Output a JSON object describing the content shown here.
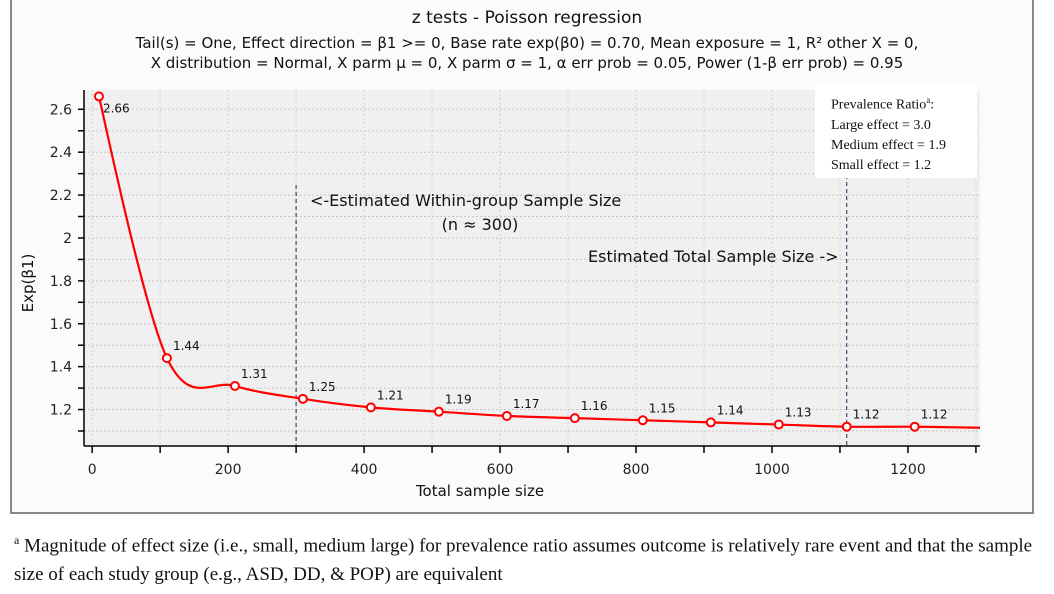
{
  "chart_data": {
    "type": "line",
    "title": "z tests - Poisson regression",
    "subtitle": [
      "Tail(s) = One, Effect direction = β1 >= 0, Base rate exp(β0) = 0.70, Mean exposure = 1, R² other X = 0,",
      "X distribution = Normal, X parm μ = 0, X parm σ = 1, α err prob = 0.05, Power (1-β err prob) = 0.95"
    ],
    "xlabel": "Total sample size",
    "ylabel": "Exp(β1)",
    "xlim": [
      -12,
      1306
    ],
    "ylim": [
      1.03,
      2.69
    ],
    "xticks": [
      0,
      200,
      400,
      600,
      800,
      1000,
      1200
    ],
    "yticks": [
      1.2,
      1.4,
      1.6,
      1.8,
      2,
      2.2,
      2.4,
      2.6
    ],
    "grid": true,
    "color": "#ff0000",
    "x": [
      10,
      110,
      210,
      310,
      410,
      510,
      610,
      710,
      810,
      910,
      1010,
      1110,
      1210
    ],
    "y": [
      2.66,
      1.44,
      1.31,
      1.25,
      1.21,
      1.19,
      1.17,
      1.16,
      1.15,
      1.14,
      1.13,
      1.12,
      1.12
    ],
    "labels": [
      "2.66",
      "1.44",
      "1.31",
      "1.25",
      "1.21",
      "1.19",
      "1.17",
      "1.16",
      "1.15",
      "1.14",
      "1.13",
      "1.12",
      "1.12"
    ],
    "curve_end": [
      1306,
      1.115
    ],
    "annotations": {
      "within_line_x": 300,
      "total_line_x": 1110,
      "within_text": "<-Estimated Within-group Sample Size",
      "within_text2": "(n ≈ 300)",
      "total_text": "Estimated Total Sample Size ->"
    },
    "legend": {
      "title": "Prevalence Ratio",
      "title_sup": "a",
      "items": [
        "Large effect = 3.0",
        "Medium effect = 1.9",
        "Small effect = 1.2"
      ],
      "placement": "top-right"
    }
  },
  "footnote": {
    "marker": "a",
    "text": "Magnitude of effect size (i.e., small, medium large) for prevalence ratio assumes outcome is relatively rare event and that the sample size of each study group (e.g., ASD, DD, & POP) are equivalent"
  }
}
